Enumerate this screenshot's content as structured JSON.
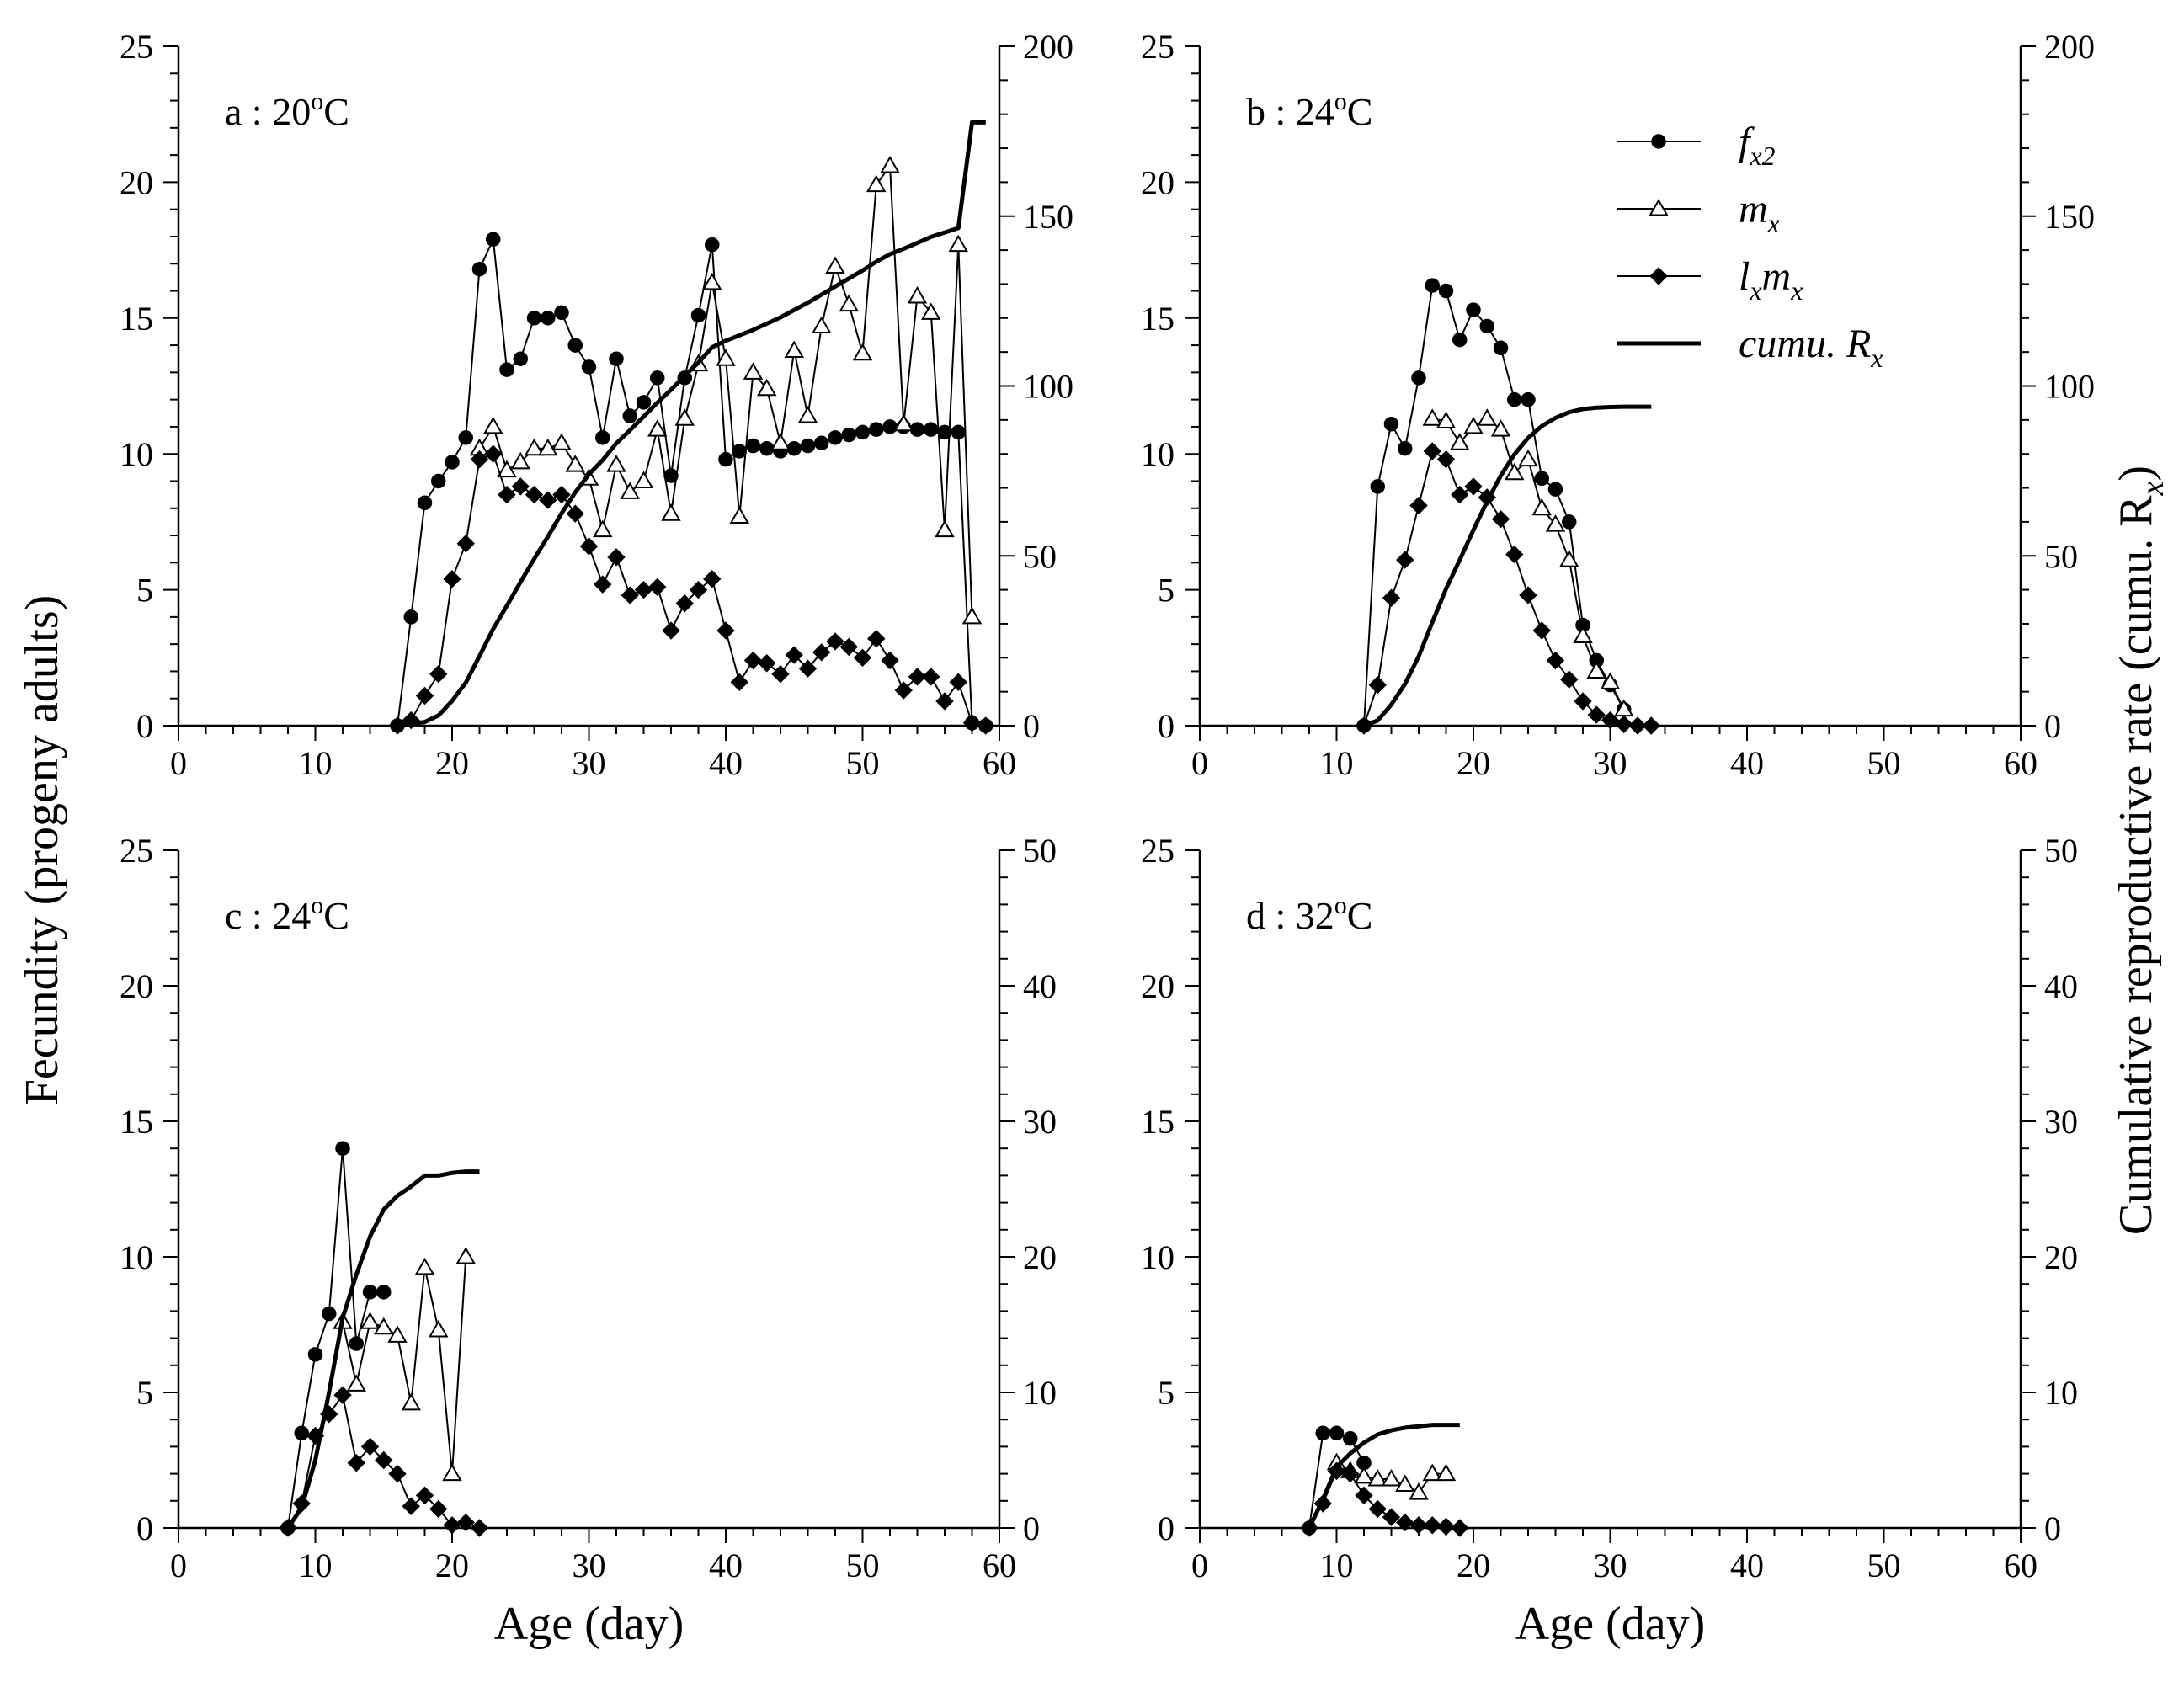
{
  "y_left_title": "Fecundity (progeny adults)",
  "y_right_title": "Cumulative reproductive rate (cumu. R",
  "y_right_title_sub": "x",
  "y_right_title_end": ")",
  "legend": [
    {
      "key": "fx2",
      "main": "f",
      "sub": "x2"
    },
    {
      "key": "mx",
      "main": "m",
      "sub": "x"
    },
    {
      "key": "lxmx",
      "main": "l",
      "sub": "x",
      "main2": "m",
      "sub2": "x"
    },
    {
      "key": "cumu",
      "main": "cumu. R",
      "sub": "x"
    }
  ],
  "chart_data": [
    {
      "type": "line",
      "panel": "a",
      "label_prefix": "a : 20",
      "label_sup": "o",
      "label_suffix": "C",
      "xlabel": "",
      "xlim": [
        0,
        60
      ],
      "ylim_left": [
        0,
        25
      ],
      "ylim_right": [
        0,
        200
      ],
      "x_ticks": [
        0,
        10,
        20,
        30,
        40,
        50,
        60
      ],
      "y_left_ticks": [
        0,
        5,
        10,
        15,
        20,
        25
      ],
      "y_right_ticks": [
        0,
        50,
        100,
        150,
        200
      ],
      "series": [
        {
          "name": "fx2",
          "x": [
            16,
            17,
            18,
            19,
            20,
            21,
            22,
            23,
            24,
            25,
            26,
            27,
            28,
            29,
            30,
            31,
            32,
            33,
            34,
            35,
            36,
            37,
            38,
            39,
            40,
            41,
            42,
            43,
            44,
            45,
            46,
            47,
            48,
            49,
            50,
            51,
            52,
            53,
            54,
            55,
            56,
            57,
            58,
            59
          ],
          "values": [
            0,
            4,
            8.2,
            9,
            9.7,
            10.6,
            16.8,
            17.9,
            13.1,
            13.5,
            15,
            15,
            15.2,
            14,
            13.2,
            10.6,
            13.5,
            11.4,
            11.9,
            12.8,
            9.2,
            12.8,
            15.1,
            17.7,
            9.8,
            10.1,
            10.3,
            10.2,
            10.1,
            10.2,
            10.3,
            10.4,
            10.6,
            10.7,
            10.8,
            10.9,
            11,
            11,
            10.9,
            10.9,
            10.8,
            10.8,
            0.1,
            0
          ]
        },
        {
          "name": "mx",
          "x": [
            22,
            23,
            24,
            25,
            26,
            27,
            28,
            29,
            30,
            31,
            32,
            33,
            34,
            35,
            36,
            37,
            38,
            39,
            40,
            41,
            42,
            43,
            44,
            45,
            46,
            47,
            48,
            49,
            50,
            51,
            52,
            53,
            54,
            55,
            56,
            57,
            58
          ],
          "values": [
            10.2,
            11,
            9.4,
            9.7,
            10.2,
            10.2,
            10.4,
            9.6,
            9.1,
            7.2,
            9.6,
            8.6,
            9,
            10.9,
            7.8,
            11.3,
            13.3,
            16.3,
            13.5,
            7.7,
            13,
            12.4,
            10.4,
            13.8,
            11.4,
            14.7,
            16.9,
            15.5,
            13.7,
            19.9,
            20.6,
            11.1,
            15.8,
            15.2,
            7.2,
            17.7,
            4
          ]
        },
        {
          "name": "lxmx",
          "x": [
            16,
            17,
            18,
            19,
            20,
            21,
            22,
            23,
            24,
            25,
            26,
            27,
            28,
            29,
            30,
            31,
            32,
            33,
            34,
            35,
            36,
            37,
            38,
            39,
            40,
            41,
            42,
            43,
            44,
            45,
            46,
            47,
            48,
            49,
            50,
            51,
            52,
            53,
            54,
            55,
            56,
            57,
            58,
            59
          ],
          "values": [
            0,
            0.2,
            1.1,
            1.9,
            5.4,
            6.7,
            9.8,
            10,
            8.5,
            8.8,
            8.5,
            8.3,
            8.5,
            7.8,
            6.6,
            5.2,
            6.2,
            4.8,
            5,
            5.1,
            3.5,
            4.5,
            5,
            5.4,
            3.5,
            1.6,
            2.4,
            2.3,
            1.9,
            2.6,
            2.1,
            2.7,
            3.1,
            2.9,
            2.5,
            3.2,
            2.4,
            1.3,
            1.8,
            1.8,
            0.9,
            1.6,
            0.1,
            0
          ]
        },
        {
          "name": "cumu",
          "axis": "right",
          "x": [
            16,
            18,
            19,
            20,
            21,
            22,
            23,
            24,
            25,
            26,
            27,
            28,
            29,
            30,
            31,
            32,
            33,
            34,
            35,
            36,
            37,
            38,
            39,
            40,
            42,
            44,
            46,
            48,
            50,
            51,
            52,
            53,
            54,
            55,
            56,
            57,
            58,
            59
          ],
          "values": [
            0,
            1.1,
            3,
            7.3,
            12.7,
            20.5,
            28.5,
            35.3,
            42.3,
            49.1,
            55.7,
            62.5,
            68.7,
            74,
            78.2,
            83.1,
            87,
            91,
            95.1,
            98.9,
            103,
            106.9,
            111.4,
            113.3,
            116.5,
            120.2,
            124.5,
            129.3,
            134,
            136.6,
            138.8,
            140.4,
            142.1,
            143.9,
            145.2,
            146.5,
            177.6,
            177.6
          ]
        }
      ]
    },
    {
      "type": "line",
      "panel": "b",
      "label_prefix": "b : 24",
      "label_sup": "o",
      "label_suffix": "C",
      "xlabel": "",
      "xlim": [
        0,
        60
      ],
      "ylim_left": [
        0,
        25
      ],
      "ylim_right": [
        0,
        200
      ],
      "x_ticks": [
        0,
        10,
        20,
        30,
        40,
        50,
        60
      ],
      "y_left_ticks": [
        0,
        5,
        10,
        15,
        20,
        25
      ],
      "y_right_ticks": [
        0,
        50,
        100,
        150,
        200
      ],
      "series": [
        {
          "name": "fx2",
          "x": [
            12,
            13,
            14,
            15,
            16,
            17,
            18,
            19,
            20,
            21,
            22,
            23,
            24,
            25,
            26,
            27,
            28,
            29,
            30,
            31
          ],
          "values": [
            0,
            8.8,
            11.1,
            10.2,
            12.8,
            16.2,
            16,
            14.2,
            15.3,
            14.7,
            13.9,
            12,
            12,
            9.1,
            8.7,
            7.5,
            3.7,
            2.4,
            1.5,
            0.6
          ]
        },
        {
          "name": "mx",
          "x": [
            17,
            18,
            19,
            20,
            21,
            22,
            23,
            24,
            25,
            26,
            27,
            28,
            29,
            30,
            31
          ],
          "values": [
            11.3,
            11.2,
            10.4,
            11,
            11.3,
            10.9,
            9.3,
            9.8,
            8,
            7.4,
            6.1,
            3.3,
            2,
            1.6,
            0.6
          ]
        },
        {
          "name": "lxmx",
          "x": [
            12,
            13,
            14,
            15,
            16,
            17,
            18,
            19,
            20,
            21,
            22,
            23,
            24,
            25,
            26,
            27,
            28,
            29,
            30,
            31,
            32,
            33
          ],
          "values": [
            0,
            1.5,
            4.7,
            6.1,
            8.1,
            10.1,
            9.8,
            8.5,
            8.8,
            8.4,
            7.6,
            6.3,
            4.8,
            3.5,
            2.4,
            1.7,
            0.9,
            0.4,
            0.2,
            0.05,
            0,
            0
          ]
        },
        {
          "name": "cumu",
          "axis": "right",
          "x": [
            12,
            13,
            14,
            15,
            16,
            17,
            18,
            19,
            20,
            21,
            22,
            23,
            24,
            25,
            26,
            27,
            28,
            29,
            30,
            31,
            32,
            33
          ],
          "values": [
            0,
            1.5,
            6.2,
            12.3,
            20.4,
            30.5,
            40.3,
            48.8,
            57.6,
            66,
            73.6,
            79.9,
            84.7,
            88.2,
            90.6,
            92.3,
            93.2,
            93.6,
            93.8,
            93.9,
            93.9,
            93.9
          ]
        }
      ]
    },
    {
      "type": "line",
      "panel": "c",
      "label_prefix": "c : 24",
      "label_sup": "o",
      "label_suffix": "C",
      "xlabel": "Age (day)",
      "xlim": [
        0,
        60
      ],
      "ylim_left": [
        0,
        25
      ],
      "ylim_right": [
        0,
        50
      ],
      "x_ticks": [
        0,
        10,
        20,
        30,
        40,
        50,
        60
      ],
      "y_left_ticks": [
        0,
        5,
        10,
        15,
        20,
        25
      ],
      "y_right_ticks": [
        0,
        10,
        20,
        30,
        40,
        50
      ],
      "series": [
        {
          "name": "fx2",
          "x": [
            8,
            9,
            10,
            11,
            12,
            13,
            14,
            15
          ],
          "values": [
            0,
            3.5,
            6.4,
            7.9,
            14,
            6.8,
            8.7,
            8.7
          ]
        },
        {
          "name": "mx",
          "x": [
            12,
            13,
            14,
            15,
            16,
            17,
            18,
            19,
            20,
            21
          ],
          "values": [
            7.6,
            5.3,
            7.6,
            7.4,
            7.1,
            4.6,
            9.6,
            7.3,
            2,
            10
          ]
        },
        {
          "name": "lxmx",
          "x": [
            8,
            9,
            10,
            11,
            12,
            13,
            14,
            15,
            16,
            17,
            18,
            19,
            20,
            21,
            22
          ],
          "values": [
            0,
            0.9,
            3.4,
            4.2,
            4.9,
            2.4,
            3,
            2.5,
            2,
            0.8,
            1.2,
            0.7,
            0.1,
            0.2,
            0
          ]
        },
        {
          "name": "cumu",
          "axis": "right",
          "x": [
            8,
            9,
            10,
            11,
            12,
            13,
            14,
            15,
            16,
            17,
            18,
            19,
            20,
            21,
            22
          ],
          "values": [
            0,
            1.5,
            5,
            10,
            15.5,
            18.7,
            21.5,
            23.5,
            24.5,
            25.2,
            26,
            26,
            26.2,
            26.3,
            26.3
          ]
        }
      ]
    },
    {
      "type": "line",
      "panel": "d",
      "label_prefix": "d : 32",
      "label_sup": "o",
      "label_suffix": "C",
      "xlabel": "Age (day)",
      "xlim": [
        0,
        60
      ],
      "ylim_left": [
        0,
        25
      ],
      "ylim_right": [
        0,
        50
      ],
      "x_ticks": [
        0,
        10,
        20,
        30,
        40,
        50,
        60
      ],
      "y_left_ticks": [
        0,
        5,
        10,
        15,
        20,
        25
      ],
      "y_right_ticks": [
        0,
        10,
        20,
        30,
        40,
        50
      ],
      "series": [
        {
          "name": "fx2",
          "x": [
            8,
            9,
            10,
            11,
            12
          ],
          "values": [
            0,
            3.5,
            3.5,
            3.3,
            2.4
          ]
        },
        {
          "name": "mx",
          "x": [
            10,
            11,
            12,
            13,
            14,
            15,
            16,
            17,
            18
          ],
          "values": [
            2.4,
            2.1,
            1.9,
            1.8,
            1.8,
            1.6,
            1.3,
            2,
            2
          ]
        },
        {
          "name": "lxmx",
          "x": [
            8,
            9,
            10,
            11,
            12,
            13,
            14,
            15,
            16,
            17,
            18,
            19
          ],
          "values": [
            0,
            0.9,
            2.1,
            2,
            1.2,
            0.7,
            0.4,
            0.2,
            0.1,
            0.1,
            0.05,
            0
          ]
        },
        {
          "name": "cumu",
          "axis": "right",
          "x": [
            8,
            9,
            10,
            11,
            12,
            13,
            14,
            15,
            16,
            17,
            18,
            19
          ],
          "values": [
            0,
            2.1,
            4.5,
            5.5,
            6.3,
            6.9,
            7.2,
            7.4,
            7.5,
            7.6,
            7.6,
            7.6
          ]
        }
      ]
    }
  ]
}
